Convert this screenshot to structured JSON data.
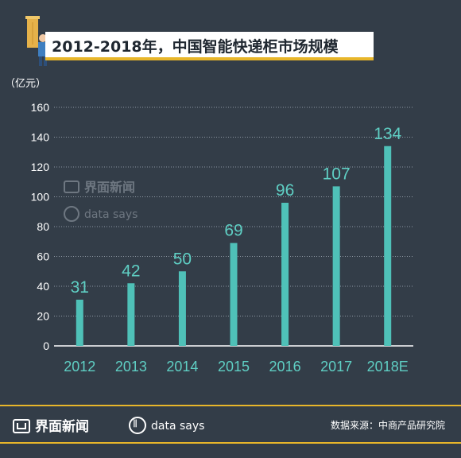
{
  "header": {
    "title": "2012-2018年，中国智能快递柜市场规模",
    "unit_label": "（亿元）"
  },
  "watermark": {
    "brand": "界面新闻",
    "data_says": "data says"
  },
  "footer": {
    "brand": "界面新闻",
    "data_says": "data says",
    "source": "数据来源：中商产品研究院"
  },
  "colors": {
    "background": "#333d48",
    "bar": "#4fc1b8",
    "value_label": "#5fcfc4",
    "accent": "#e8b62a",
    "axis_text": "#ffffff"
  },
  "chart_data": {
    "type": "bar",
    "categories": [
      "2012",
      "2013",
      "2014",
      "2015",
      "2016",
      "2017",
      "2018E"
    ],
    "values": [
      31,
      42,
      50,
      69,
      96,
      107,
      134
    ],
    "title": "2012-2018年，中国智能快递柜市场规模",
    "ylabel": "（亿元）",
    "xlabel": "",
    "ylim": [
      0,
      160
    ],
    "yticks": [
      0,
      20,
      40,
      60,
      80,
      100,
      120,
      140,
      160
    ],
    "grid": "horizontal-dotted",
    "legend": "none"
  }
}
